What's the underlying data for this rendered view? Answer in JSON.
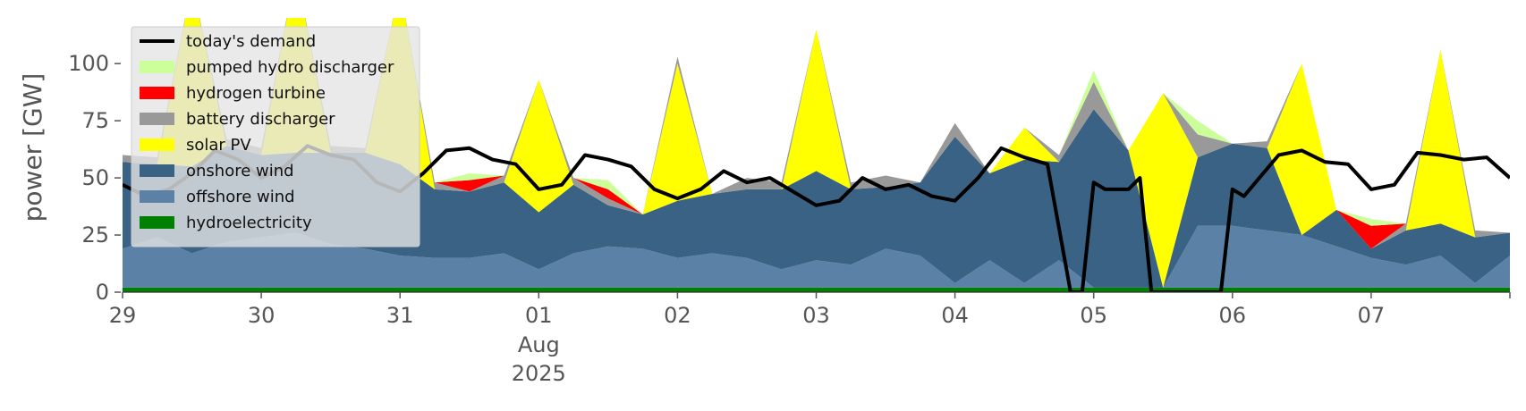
{
  "chart_data": {
    "type": "area",
    "ylabel": "power [GW]",
    "ylim": [
      0,
      120
    ],
    "y_ticks": [
      0,
      25,
      50,
      75,
      100
    ],
    "x_range": [
      "2025-07-29T00:00",
      "2025-08-08T00:00"
    ],
    "x_ticks": [
      {
        "date": "2025-07-29",
        "label": "29"
      },
      {
        "date": "2025-07-30",
        "label": "30"
      },
      {
        "date": "2025-07-31",
        "label": "31"
      },
      {
        "date": "2025-08-01",
        "label": "01",
        "sublabels": [
          "Aug",
          "2025"
        ]
      },
      {
        "date": "2025-08-02",
        "label": "02"
      },
      {
        "date": "2025-08-03",
        "label": "03"
      },
      {
        "date": "2025-08-04",
        "label": "04"
      },
      {
        "date": "2025-08-05",
        "label": "05"
      },
      {
        "date": "2025-08-06",
        "label": "06"
      },
      {
        "date": "2025-08-07",
        "label": "07"
      }
    ],
    "grid": false,
    "legend_position": "top-left",
    "hours": [
      0,
      6,
      12,
      18,
      24,
      30,
      36,
      42,
      48,
      54,
      60,
      66,
      72,
      78,
      84,
      90,
      96,
      102,
      108,
      114,
      120,
      126,
      132,
      138,
      144,
      150,
      156,
      162,
      168,
      174,
      180,
      186,
      192,
      198,
      204,
      210,
      216,
      222,
      228,
      234,
      240
    ],
    "stacked_series": [
      {
        "name": "hydroelectricity",
        "color": "#008000",
        "values": [
          2,
          2,
          2,
          2,
          2,
          2,
          2,
          2,
          2,
          2,
          2,
          2,
          2,
          2,
          2,
          2,
          2,
          2,
          2,
          2,
          2,
          2,
          2,
          2,
          2,
          2,
          2,
          2,
          2,
          2,
          2,
          2,
          2,
          2,
          2,
          2,
          2,
          2,
          2,
          2,
          2
        ]
      },
      {
        "name": "offshore wind",
        "color": "#5b82a6",
        "values": [
          17,
          22,
          15,
          20,
          22,
          24,
          19,
          17,
          14,
          13,
          13,
          15,
          8,
          15,
          18,
          17,
          13,
          15,
          13,
          8,
          12,
          10,
          17,
          14,
          2,
          12,
          2,
          12,
          0,
          0,
          0,
          27,
          27,
          25,
          23,
          18,
          13,
          10,
          14,
          2,
          14
        ]
      },
      {
        "name": "onshore wind",
        "color": "#3a6284",
        "values": [
          38,
          32,
          38,
          42,
          36,
          35,
          40,
          42,
          40,
          30,
          29,
          31,
          25,
          30,
          18,
          15,
          25,
          26,
          30,
          35,
          39,
          33,
          27,
          32,
          64,
          38,
          54,
          43,
          78,
          60,
          0,
          30,
          36,
          36,
          0,
          16,
          4,
          15,
          14,
          20,
          10
        ]
      },
      {
        "name": "solar PV",
        "color": "#ffff00",
        "values": [
          0,
          0,
          80,
          0,
          0,
          80,
          0,
          0,
          78,
          0,
          0,
          0,
          58,
          0,
          0,
          0,
          60,
          0,
          0,
          0,
          62,
          0,
          0,
          0,
          0,
          0,
          14,
          0,
          0,
          0,
          85,
          0,
          0,
          0,
          75,
          0,
          0,
          0,
          76,
          0,
          0
        ]
      },
      {
        "name": "battery discharger",
        "color": "#999999",
        "values": [
          3,
          3,
          0,
          3,
          3,
          0,
          3,
          2,
          0,
          3,
          0,
          3,
          0,
          3,
          3,
          0,
          3,
          0,
          5,
          3,
          0,
          3,
          5,
          0,
          6,
          0,
          0,
          3,
          12,
          0,
          0,
          10,
          0,
          3,
          0,
          0,
          0,
          3,
          0,
          3,
          0
        ]
      },
      {
        "name": "hydrogen turbine",
        "color": "#ff0000",
        "values": [
          0,
          0,
          0,
          0,
          0,
          0,
          0,
          0,
          0,
          0,
          5,
          0,
          0,
          0,
          4,
          0,
          0,
          0,
          0,
          0,
          0,
          0,
          0,
          0,
          0,
          0,
          0,
          0,
          0,
          0,
          0,
          0,
          0,
          0,
          0,
          0,
          10,
          0,
          0,
          0,
          0
        ]
      },
      {
        "name": "pumped hydro discharger",
        "color": "#ccff99",
        "values": [
          0,
          0,
          0,
          0,
          0,
          0,
          0,
          0,
          0,
          0,
          3,
          0,
          0,
          0,
          4,
          0,
          0,
          0,
          0,
          0,
          0,
          0,
          0,
          0,
          0,
          0,
          0,
          0,
          5,
          0,
          0,
          6,
          0,
          0,
          0,
          0,
          3,
          0,
          0,
          0,
          0
        ]
      }
    ],
    "demand": {
      "name": "today's demand",
      "color": "#000000",
      "points": [
        [
          0,
          47
        ],
        [
          4,
          42
        ],
        [
          8,
          45
        ],
        [
          12,
          52
        ],
        [
          16,
          62
        ],
        [
          20,
          58
        ],
        [
          24,
          50
        ],
        [
          28,
          55
        ],
        [
          32,
          64
        ],
        [
          36,
          60
        ],
        [
          40,
          58
        ],
        [
          44,
          48
        ],
        [
          48,
          44
        ],
        [
          52,
          52
        ],
        [
          56,
          62
        ],
        [
          60,
          63
        ],
        [
          64,
          58
        ],
        [
          68,
          56
        ],
        [
          72,
          45
        ],
        [
          76,
          47
        ],
        [
          80,
          60
        ],
        [
          84,
          58
        ],
        [
          88,
          55
        ],
        [
          92,
          45
        ],
        [
          96,
          41
        ],
        [
          100,
          45
        ],
        [
          104,
          53
        ],
        [
          108,
          48
        ],
        [
          112,
          50
        ],
        [
          116,
          44
        ],
        [
          120,
          38
        ],
        [
          124,
          40
        ],
        [
          128,
          50
        ],
        [
          132,
          45
        ],
        [
          136,
          47
        ],
        [
          140,
          42
        ],
        [
          144,
          40
        ],
        [
          148,
          50
        ],
        [
          152,
          63
        ],
        [
          156,
          59
        ],
        [
          160,
          56
        ],
        [
          164,
          0
        ],
        [
          166,
          0
        ],
        [
          168,
          48
        ],
        [
          170,
          45
        ],
        [
          174,
          45
        ],
        [
          176,
          50
        ],
        [
          178,
          0
        ],
        [
          186,
          0
        ],
        [
          190,
          0
        ],
        [
          192,
          45
        ],
        [
          194,
          42
        ],
        [
          196,
          48
        ],
        [
          200,
          60
        ],
        [
          204,
          62
        ],
        [
          208,
          57
        ],
        [
          212,
          56
        ],
        [
          216,
          45
        ],
        [
          220,
          47
        ],
        [
          224,
          61
        ],
        [
          228,
          60
        ],
        [
          232,
          58
        ],
        [
          236,
          59
        ],
        [
          240,
          50
        ]
      ]
    }
  }
}
